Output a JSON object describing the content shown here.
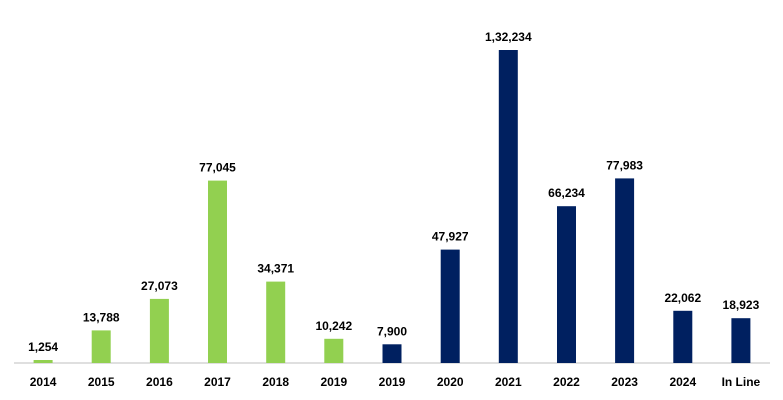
{
  "chart_data": {
    "type": "bar",
    "title": "",
    "xlabel": "",
    "ylabel": "",
    "ylim": [
      0,
      132234
    ],
    "grid": false,
    "legend": "none",
    "colors": {
      "green": "#92d050",
      "navy": "#002060",
      "axis": "#bfbfbf"
    },
    "categories": [
      "2014",
      "2015",
      "2016",
      "2017",
      "2018",
      "2019",
      "2019",
      "2020",
      "2021",
      "2022",
      "2023",
      "2024",
      "In Line"
    ],
    "values": [
      1254,
      13788,
      27073,
      77045,
      34371,
      10242,
      7900,
      47927,
      132234,
      66234,
      77983,
      22062,
      18923
    ],
    "value_labels": [
      "1,254",
      "13,788",
      "27,073",
      "77,045",
      "34,371",
      "10,242",
      "7,900",
      "47,927",
      "1,32,234",
      "66,234",
      "77,983",
      "22,062",
      "18,923"
    ],
    "bar_colors": [
      "green",
      "green",
      "green",
      "green",
      "green",
      "green",
      "navy",
      "navy",
      "navy",
      "navy",
      "navy",
      "navy",
      "navy"
    ]
  }
}
